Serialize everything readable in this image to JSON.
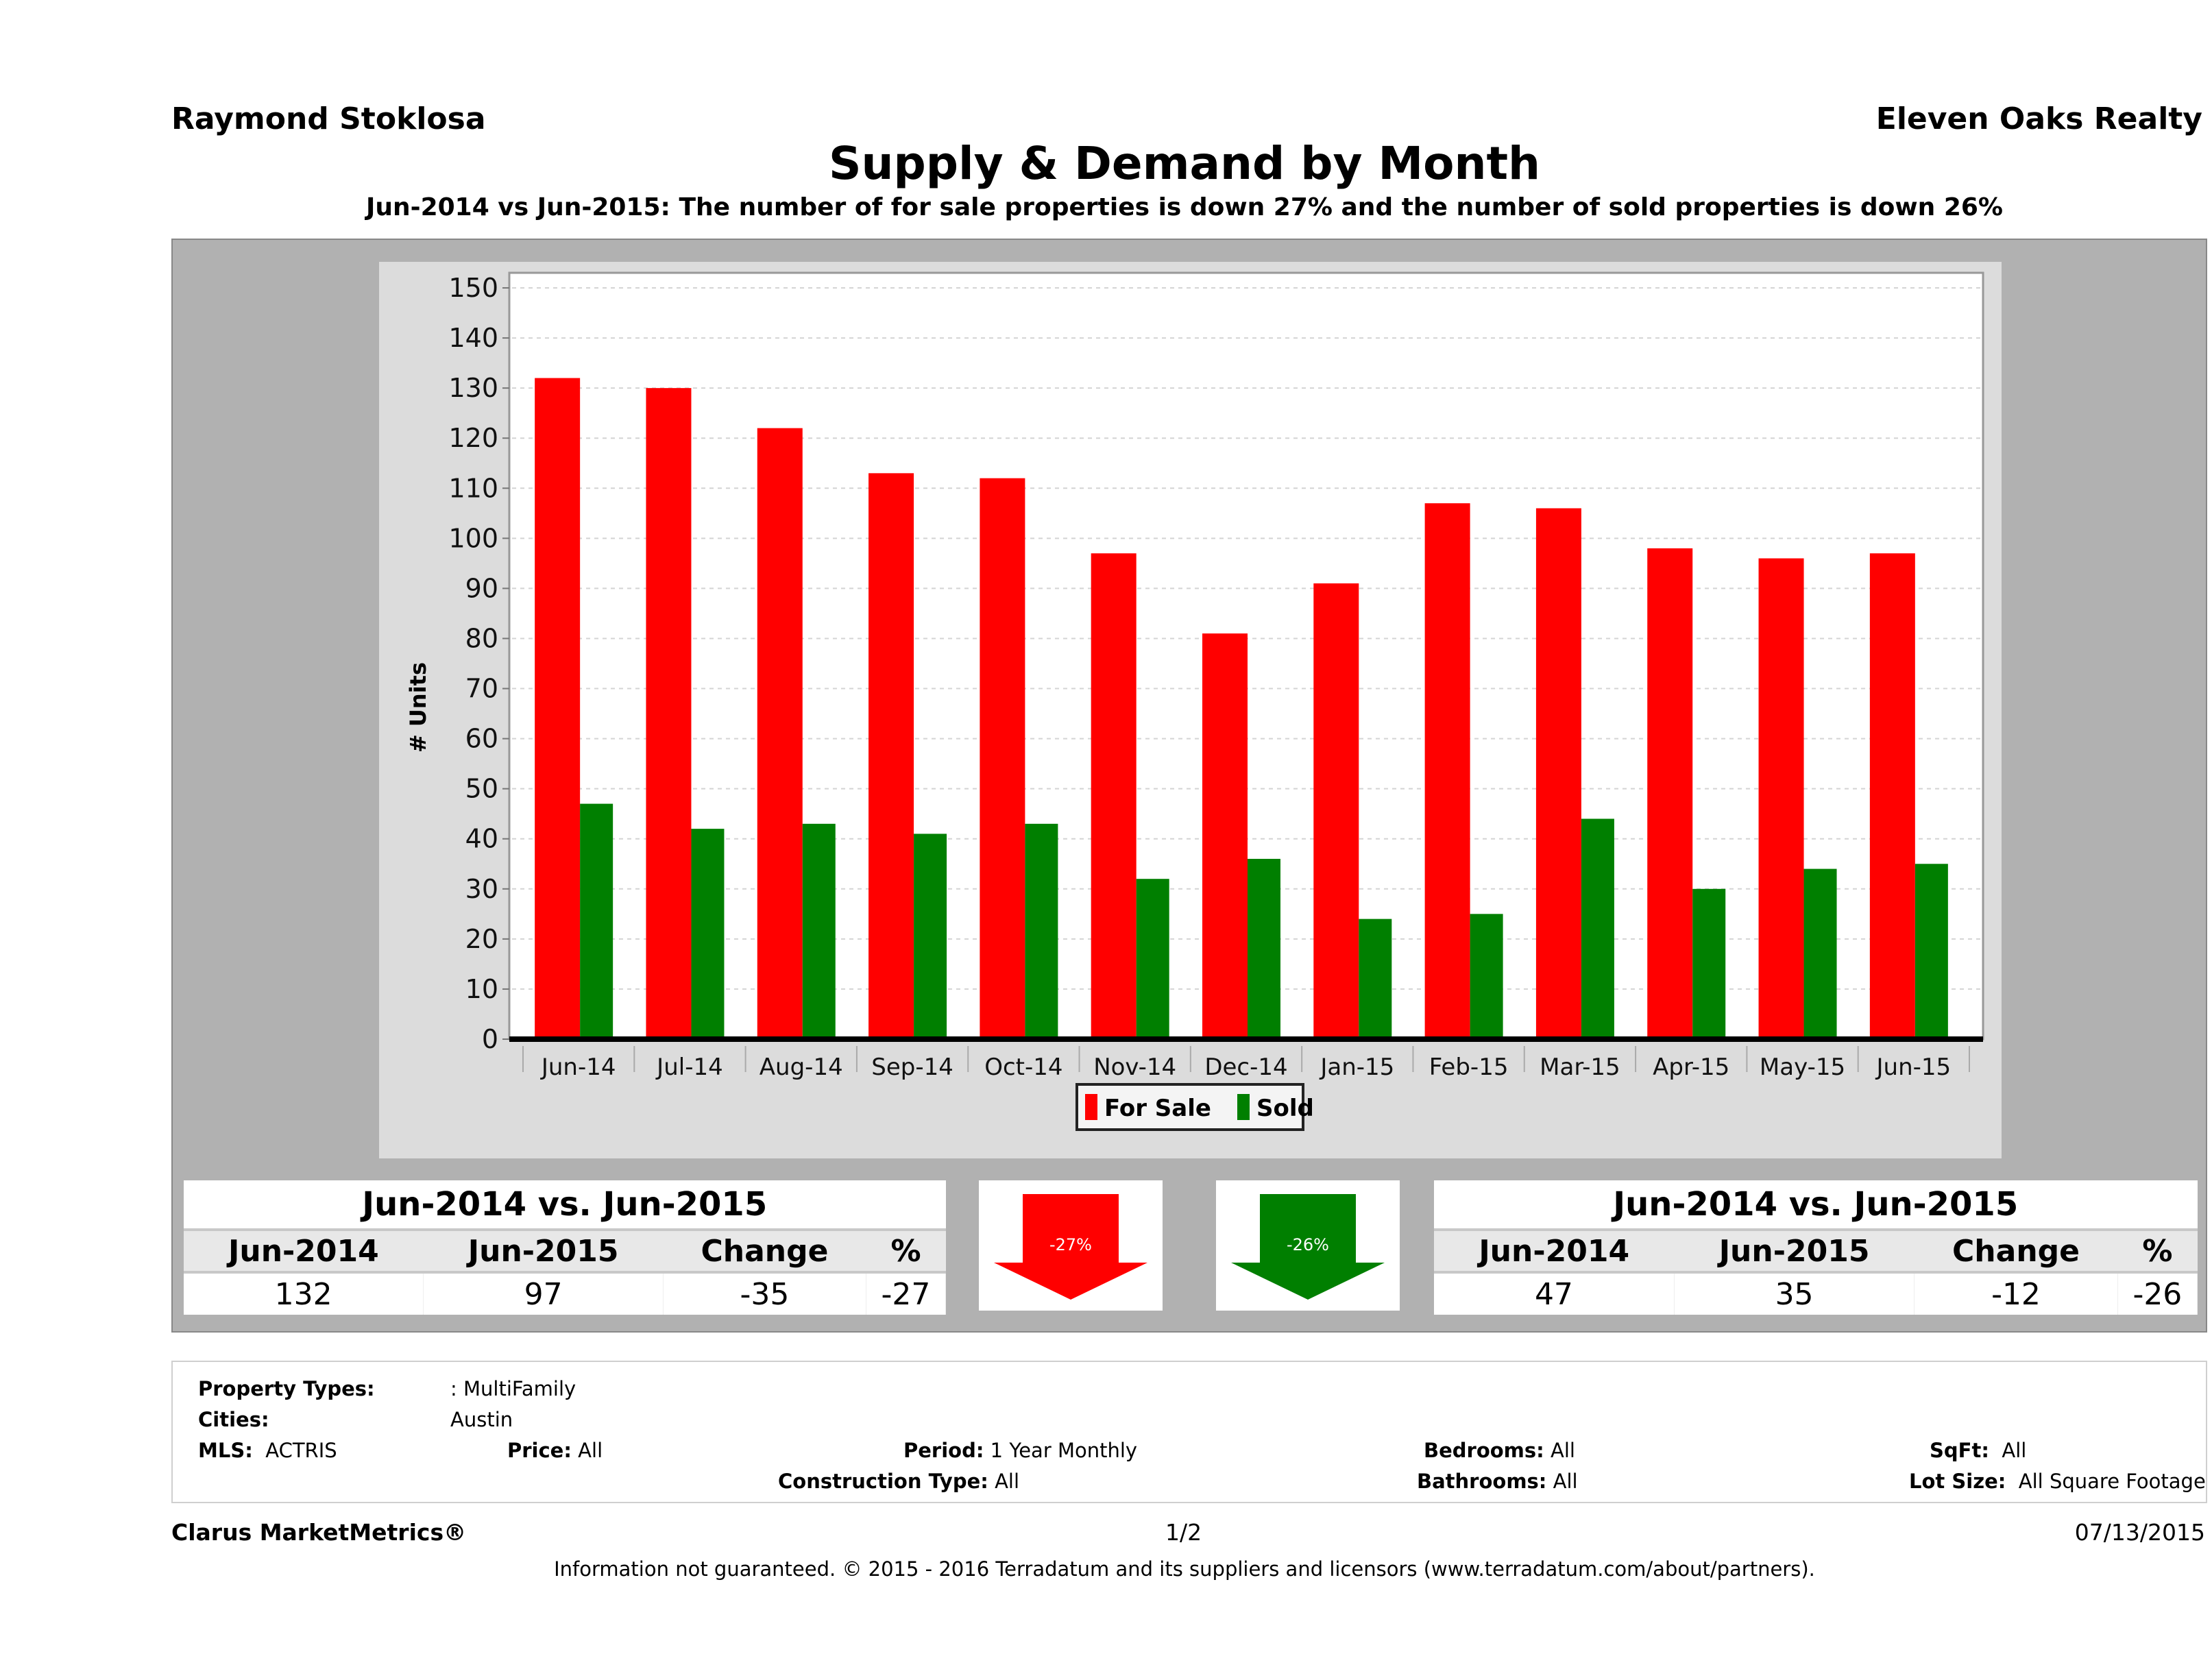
{
  "header": {
    "agent_name": "Raymond Stoklosa",
    "brokerage": "Eleven Oaks Realty",
    "title": "Supply & Demand by Month",
    "subtitle": "Jun-2014 vs Jun-2015: The number of for sale properties is down 27% and the number of sold properties is down 26%"
  },
  "chart_data": {
    "type": "bar",
    "title": "Supply & Demand by Month",
    "xlabel": "",
    "ylabel": "# Units",
    "ylim": [
      0,
      150
    ],
    "yticks": [
      0,
      10,
      20,
      30,
      40,
      50,
      60,
      70,
      80,
      90,
      100,
      110,
      120,
      130,
      140,
      150
    ],
    "grid": true,
    "legend_position": "bottom-center",
    "categories": [
      "Jun-14",
      "Jul-14",
      "Aug-14",
      "Sep-14",
      "Oct-14",
      "Nov-14",
      "Dec-14",
      "Jan-15",
      "Feb-15",
      "Mar-15",
      "Apr-15",
      "May-15",
      "Jun-15"
    ],
    "series": [
      {
        "name": "For Sale",
        "color": "#ff0000",
        "values": [
          132,
          130,
          122,
          113,
          112,
          97,
          81,
          91,
          107,
          106,
          98,
          96,
          97
        ]
      },
      {
        "name": "Sold",
        "color": "#007f00",
        "values": [
          47,
          42,
          43,
          41,
          43,
          32,
          36,
          24,
          25,
          44,
          30,
          34,
          35
        ]
      }
    ]
  },
  "for_sale_summary": {
    "heading": "Jun-2014 vs. Jun-2015",
    "columns": [
      "Jun-2014",
      "Jun-2015",
      "Change",
      "%"
    ],
    "values": [
      "132",
      "97",
      "-35",
      "-27"
    ],
    "arrow_label": "-27%",
    "arrow_color": "#ff0000"
  },
  "sold_summary": {
    "heading": "Jun-2014 vs. Jun-2015",
    "columns": [
      "Jun-2014",
      "Jun-2015",
      "Change",
      "%"
    ],
    "values": [
      "47",
      "35",
      "-12",
      "-26"
    ],
    "arrow_label": "-26%",
    "arrow_color": "#007f00"
  },
  "filters": {
    "property_types_label": "Property Types:",
    "property_types_value": ": MultiFamily",
    "cities_label": "Cities:",
    "cities_value": "Austin",
    "mls_label": "MLS:",
    "mls_value": "ACTRIS",
    "price_label": "Price:",
    "price_value": "All",
    "period_label": "Period:",
    "period_value": "1 Year Monthly",
    "construction_label": "Construction Type:",
    "construction_value": "All",
    "bedrooms_label": "Bedrooms:",
    "bedrooms_value": "All",
    "bathrooms_label": "Bathrooms:",
    "bathrooms_value": "All",
    "sqft_label": "SqFt:",
    "sqft_value": "All",
    "lot_size_label": "Lot Size:",
    "lot_size_value": "All Square Footage"
  },
  "footer": {
    "product": "Clarus MarketMetrics®",
    "page": "1/2",
    "date": "07/13/2015",
    "disclaimer": "Information not guaranteed. © 2015 - 2016 Terradatum and its suppliers and licensors (www.terradatum.com/about/partners)."
  }
}
